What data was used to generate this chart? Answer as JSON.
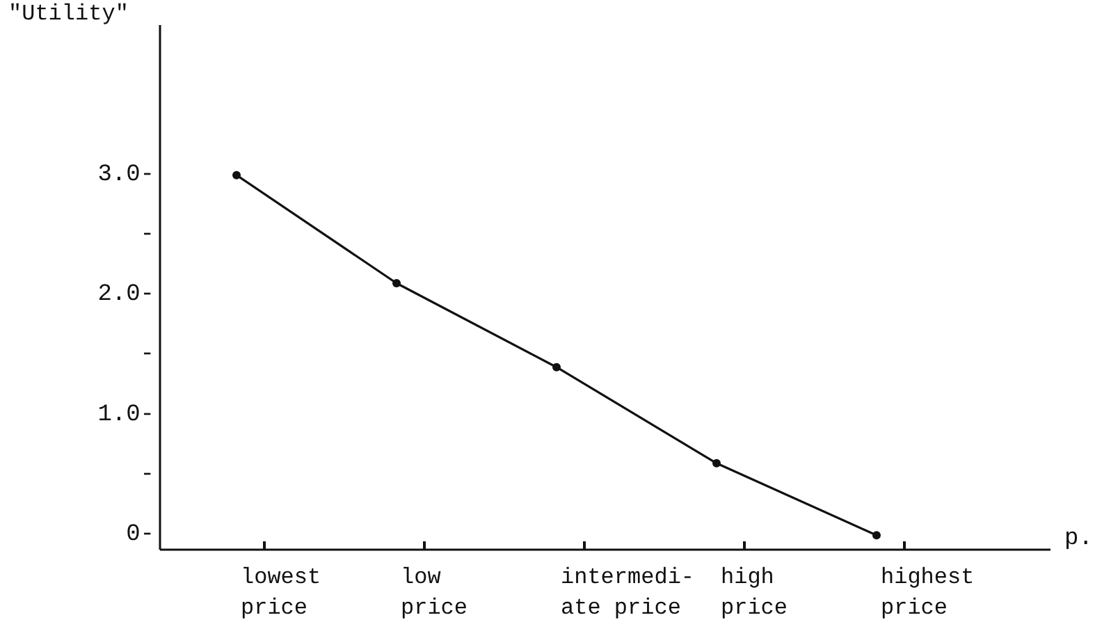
{
  "chart_data": {
    "type": "line",
    "ylabel": "\"Utility\"",
    "xlabel": "p.",
    "categories": [
      "lowest\nprice",
      "low\nprice",
      "intermedi-\nate price",
      "high\nprice",
      "highest\nprice"
    ],
    "series": [
      {
        "color": "#111111",
        "values": [
          3.0,
          2.1,
          1.4,
          0.6,
          0
        ]
      }
    ],
    "ylim": [
      -0.12,
      4.25
    ],
    "yticks": [
      {
        "value": 0,
        "label": "0-"
      },
      {
        "value": 0.5,
        "label": "-"
      },
      {
        "value": 1,
        "label": "1.0-"
      },
      {
        "value": 1.5,
        "label": "-"
      },
      {
        "value": 2,
        "label": "2.0-"
      },
      {
        "value": 2.5,
        "label": "-"
      },
      {
        "value": 3,
        "label": "3.0-"
      }
    ],
    "grid": false,
    "marker": "circle",
    "line_style": "solid"
  }
}
